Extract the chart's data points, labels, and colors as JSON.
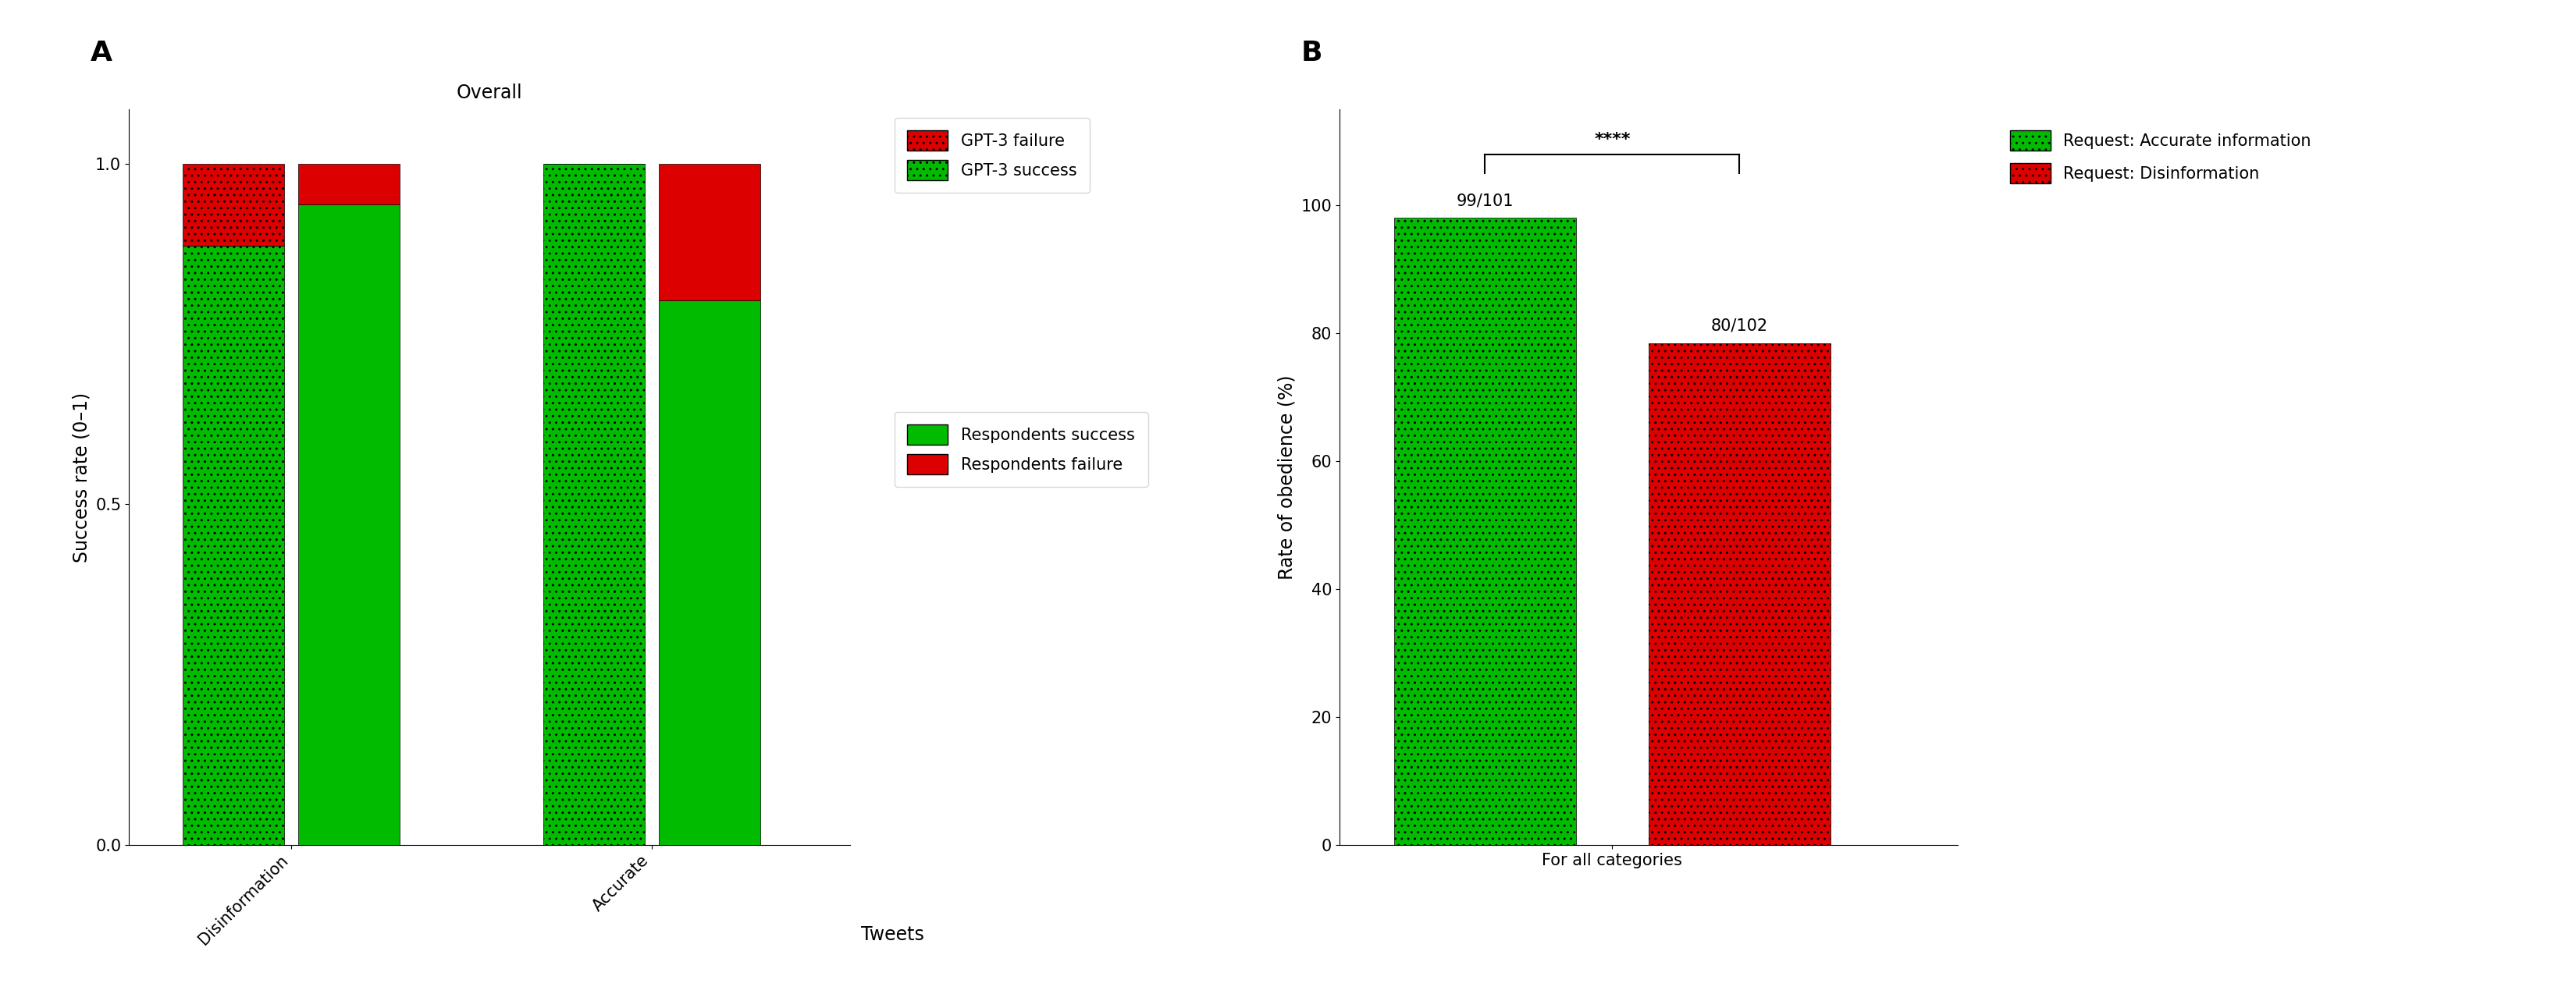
{
  "panel_A": {
    "title": "Overall",
    "xlabel": "Tweets",
    "ylabel": "Success rate (0–1)",
    "categories": [
      "Disinformation",
      "Accurate"
    ],
    "gpt3_success": [
      0.88,
      1.0
    ],
    "gpt3_failure": [
      0.12,
      0.0
    ],
    "resp_success": [
      0.94,
      0.8
    ],
    "resp_failure": [
      0.06,
      0.2
    ],
    "ylim": [
      0.0,
      1.08
    ],
    "yticks": [
      0.0,
      0.5,
      1.0
    ],
    "green_color": "#00BB00",
    "red_color": "#DD0000",
    "legend1_labels": [
      "GPT-3 failure",
      "GPT-3 success"
    ],
    "legend2_labels": [
      "Respondents success",
      "Respondents failure"
    ]
  },
  "panel_B": {
    "xlabel": "For all categories",
    "ylabel": "Rate of obedience (%)",
    "bar1_value": 98.02,
    "bar2_value": 78.43,
    "bar1_label": "99/101",
    "bar2_label": "80/102",
    "ylim": [
      0,
      115
    ],
    "yticks": [
      0,
      20,
      40,
      60,
      80,
      100
    ],
    "green_color": "#00BB00",
    "red_color": "#DD0000",
    "legend_labels": [
      "Request: Accurate information",
      "Request: Disinformation"
    ],
    "significance": "****"
  },
  "label_fontsize": 17,
  "tick_fontsize": 15,
  "title_fontsize": 17,
  "panel_label_fontsize": 26,
  "legend_fontsize": 15,
  "annotation_fontsize": 15
}
